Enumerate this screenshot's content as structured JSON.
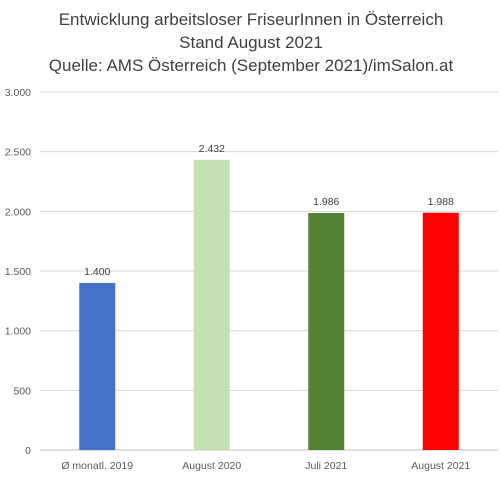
{
  "chart_data": {
    "type": "bar",
    "title": "Entwicklung arbeitsloser FriseurInnen in Österreich",
    "subtitle": "Stand August 2021",
    "source": "Quelle: AMS Österreich (September 2021)/imSalon.at",
    "categories": [
      "Ø monatl. 2019",
      "August 2020",
      "Juli 2021",
      "August 2021"
    ],
    "values": [
      1400,
      2432,
      1986,
      1988
    ],
    "value_labels": [
      "1.400",
      "2.432",
      "1.986",
      "1.988"
    ],
    "colors": [
      "#4472c4",
      "#c5e0b4",
      "#548235",
      "#ff0000"
    ],
    "ylim": [
      0,
      3000
    ],
    "yticks": [
      0,
      500,
      1000,
      1500,
      2000,
      2500,
      3000
    ],
    "ytick_labels": [
      "0",
      "500",
      "1.000",
      "1.500",
      "2.000",
      "2.500",
      "3.000"
    ],
    "grid": true,
    "xlabel": "",
    "ylabel": ""
  }
}
